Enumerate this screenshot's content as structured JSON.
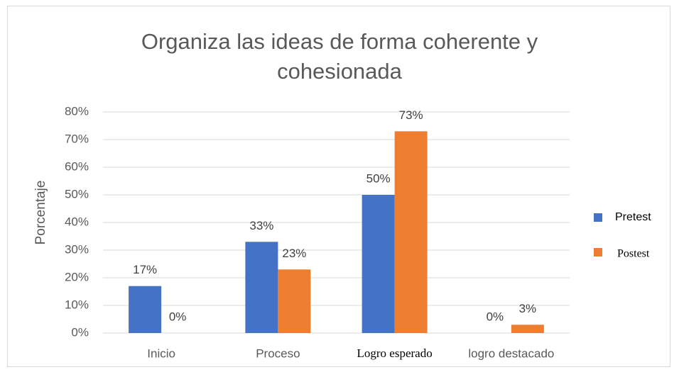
{
  "chart_data": {
    "type": "bar",
    "title": "Organiza las ideas de forma coherente y cohesionada",
    "y_label": "Porcentaje",
    "categories": [
      "Inicio",
      "Proceso",
      "Logro esperado",
      "logro destacado"
    ],
    "series": [
      {
        "name": "Pretest",
        "color": "#4472c4",
        "values": [
          17,
          33,
          50,
          0
        ],
        "value_labels": [
          "17%",
          "33%",
          "50%",
          "0%"
        ]
      },
      {
        "name": "Postest",
        "color": "#ed7d31",
        "values": [
          0,
          23,
          73,
          3
        ],
        "value_labels": [
          "0%",
          "23%",
          "73%",
          "3%"
        ]
      }
    ],
    "ylim": [
      0,
      80
    ],
    "yticks": [
      {
        "value": 0,
        "label": "0%"
      },
      {
        "value": 10,
        "label": "10%"
      },
      {
        "value": 20,
        "label": "20%"
      },
      {
        "value": 30,
        "label": "30%"
      },
      {
        "value": 40,
        "label": "40%"
      },
      {
        "value": 50,
        "label": "50%"
      },
      {
        "value": 60,
        "label": "60%"
      },
      {
        "value": 70,
        "label": "70%"
      },
      {
        "value": 80,
        "label": "80%"
      }
    ],
    "grid": true,
    "legend": "right"
  }
}
